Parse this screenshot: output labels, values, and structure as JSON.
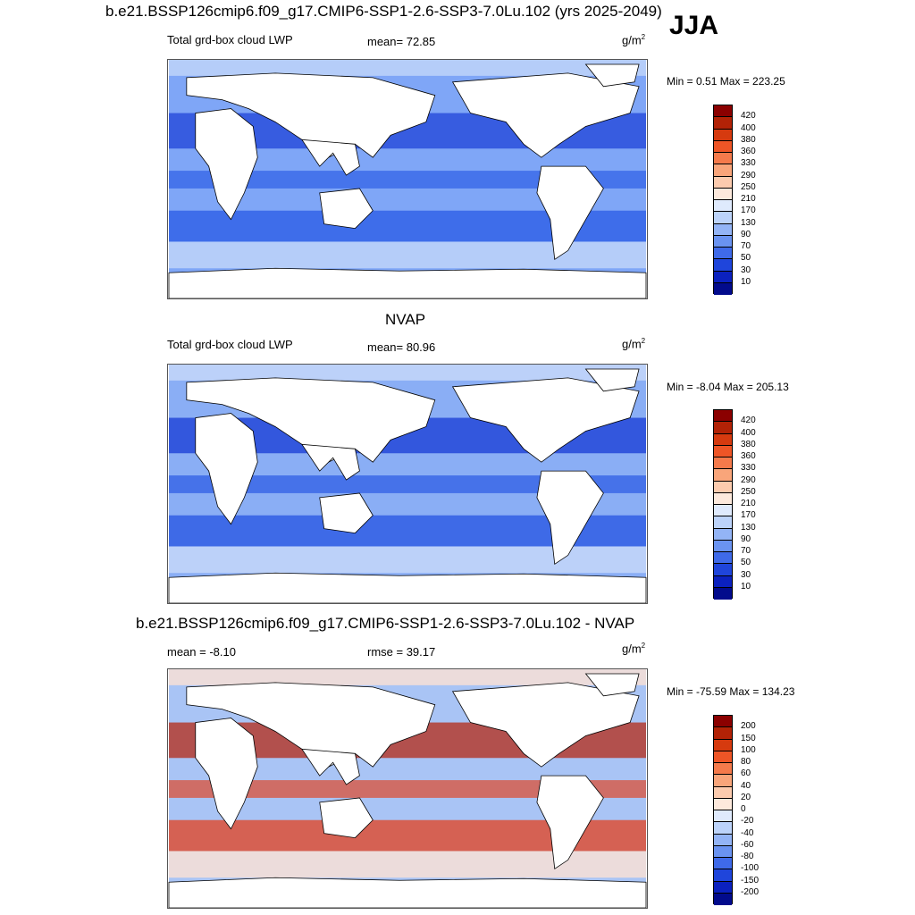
{
  "title": "b.e21.BSSP126cmip6.f09_g17.CMIP6-SSP1-2.6-SSP3-7.0Lu.102 (yrs 2025-2049)",
  "season": "JJA",
  "panels": [
    {
      "title": "",
      "left_label": "Total grd-box cloud LWP",
      "center_label": "mean=  72.85",
      "unit": "g/m",
      "unit_exp": "2",
      "minmax": "Min =   0.51 Max = 223.25",
      "colorbar_labels": [
        "420",
        "400",
        "380",
        "360",
        "330",
        "290",
        "250",
        "210",
        "170",
        "130",
        "90",
        "70",
        "50",
        "30",
        "10"
      ],
      "fill_colors": {
        "ocean": "#7fa6f7",
        "band": "#2e5fe6",
        "deep": "#1f43d8",
        "pale": "#c3d7f9",
        "land": "#ffffff"
      }
    },
    {
      "title": "NVAP",
      "left_label": "Total grd-box cloud LWP",
      "center_label": "mean=  80.96",
      "unit": "g/m",
      "unit_exp": "2",
      "minmax": "Min =  -8.04 Max = 205.13",
      "colorbar_labels": [
        "420",
        "400",
        "380",
        "360",
        "330",
        "290",
        "250",
        "210",
        "170",
        "130",
        "90",
        "70",
        "50",
        "30",
        "10"
      ],
      "fill_colors": {
        "ocean": "#8aaef5",
        "band": "#2a59e4",
        "deep": "#163ad4",
        "pale": "#c8dafa",
        "land": "#ffffff"
      }
    },
    {
      "title": "b.e21.BSSP126cmip6.f09_g17.CMIP6-SSP1-2.6-SSP3-7.0Lu.102 - NVAP",
      "left_label": "mean =  -8.10",
      "center_label": "rmse =  39.17",
      "unit": "g/m",
      "unit_exp": "2",
      "minmax": "Min = -75.59 Max = 134.23",
      "colorbar_labels": [
        "200",
        "150",
        "100",
        "80",
        "60",
        "40",
        "20",
        "0",
        "-20",
        "-40",
        "-60",
        "-80",
        "-100",
        "-150",
        "-200"
      ],
      "fill_colors": {
        "ocean": "#a9c4f5",
        "band": "#e0492a",
        "deep": "#b52a14",
        "pale": "#fde2d4",
        "land": "#ffffff"
      }
    }
  ],
  "colorbar_colors": [
    "#8b0000",
    "#b22206",
    "#d63a0f",
    "#ee5526",
    "#f57a4b",
    "#f9a57a",
    "#fccbae",
    "#fde9dc",
    "#dfeafd",
    "#bcd3fa",
    "#93b4f6",
    "#6a93f1",
    "#3f6ae9",
    "#1f45db",
    "#0b21bf",
    "#020b8c"
  ]
}
